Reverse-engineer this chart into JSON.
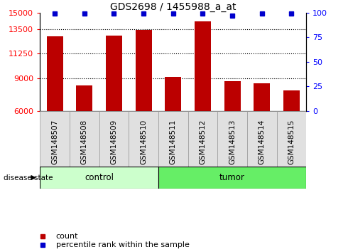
{
  "title": "GDS2698 / 1455988_a_at",
  "samples": [
    "GSM148507",
    "GSM148508",
    "GSM148509",
    "GSM148510",
    "GSM148511",
    "GSM148512",
    "GSM148513",
    "GSM148514",
    "GSM148515"
  ],
  "counts": [
    12800,
    8300,
    12900,
    13400,
    9100,
    14200,
    8700,
    8500,
    7900
  ],
  "percentile_ranks": [
    99,
    99,
    99,
    99,
    99,
    99,
    97,
    99,
    99
  ],
  "ylim_left": [
    6000,
    15000
  ],
  "ylim_right": [
    0,
    100
  ],
  "yticks_left": [
    6000,
    9000,
    11250,
    13500,
    15000
  ],
  "yticks_right": [
    0,
    25,
    50,
    75,
    100
  ],
  "bar_color": "#BB0000",
  "dot_color": "#0000CC",
  "control_color": "#CCFFCC",
  "tumor_color": "#66EE66",
  "disease_state_label": "disease state",
  "legend_count_label": "count",
  "legend_percentile_label": "percentile rank within the sample",
  "tick_label_fontsize": 8,
  "title_fontsize": 10,
  "n_control": 4,
  "n_tumor": 5
}
